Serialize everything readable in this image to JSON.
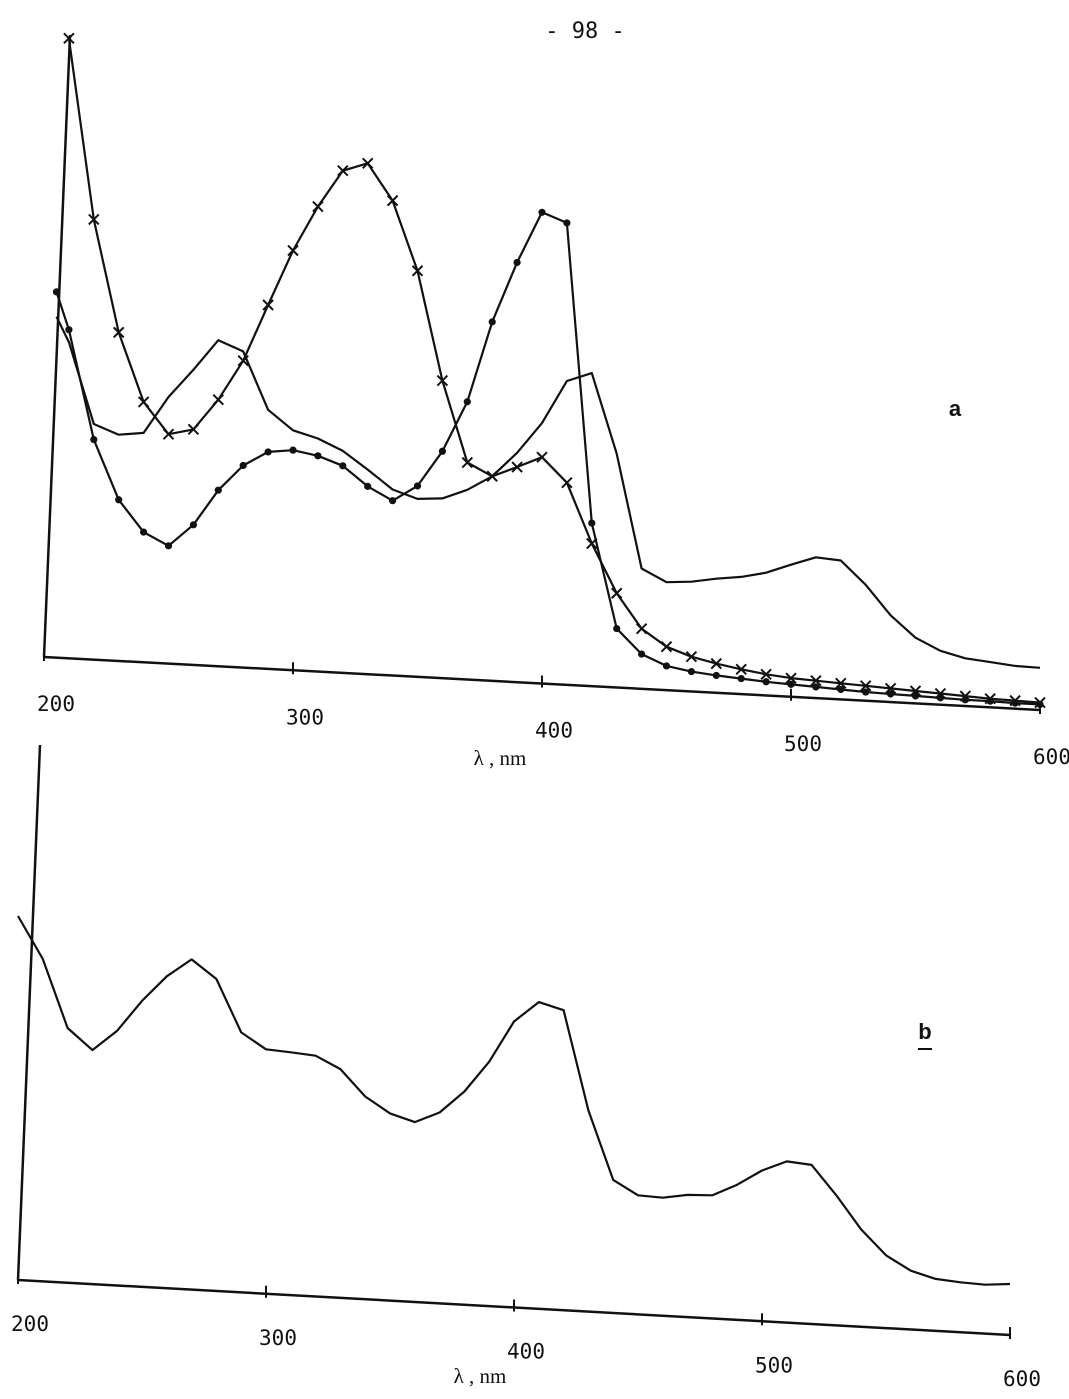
{
  "header": {
    "page_number": "- 98 -"
  },
  "chart_data": [
    {
      "type": "line",
      "annotation": "a",
      "x_label": "λ , nm",
      "xlim": [
        200,
        600
      ],
      "xticks": [
        200,
        300,
        400,
        500,
        600
      ],
      "ylim": [
        0,
        1.05
      ],
      "x": [
        205,
        210,
        220,
        230,
        240,
        250,
        260,
        270,
        280,
        290,
        300,
        310,
        320,
        330,
        340,
        350,
        360,
        370,
        380,
        390,
        400,
        410,
        420,
        430,
        440,
        450,
        460,
        470,
        480,
        490,
        500,
        510,
        520,
        530,
        540,
        550,
        560,
        570,
        580,
        590,
        600
      ],
      "series": [
        {
          "color": "#111111",
          "marker": "none",
          "values": [
            0.55,
            0.51,
            0.38,
            0.365,
            0.37,
            0.43,
            0.476,
            0.526,
            0.51,
            0.418,
            0.387,
            0.376,
            0.358,
            0.33,
            0.3,
            0.287,
            0.29,
            0.306,
            0.33,
            0.37,
            0.42,
            0.49,
            0.505,
            0.377,
            0.194,
            0.174,
            0.177,
            0.184,
            0.189,
            0.198,
            0.213,
            0.227,
            0.224,
            0.187,
            0.14,
            0.106,
            0.087,
            0.077,
            0.073,
            0.069,
            0.068
          ]
        },
        {
          "color": "#111111",
          "marker": "x",
          "values": [
            null,
            1.0,
            0.71,
            0.53,
            0.42,
            0.37,
            0.38,
            0.43,
            0.495,
            0.587,
            0.677,
            0.75,
            0.81,
            0.824,
            0.766,
            0.655,
            0.48,
            0.35,
            0.33,
            0.347,
            0.365,
            0.326,
            0.23,
            0.152,
            0.097,
            0.07,
            0.056,
            0.047,
            0.04,
            0.034,
            0.03,
            0.028,
            0.026,
            0.024,
            0.022,
            0.02,
            0.018,
            0.016,
            0.014,
            0.013,
            0.012
          ]
        },
        {
          "color": "#111111",
          "marker": "dot",
          "values": [
            0.59,
            0.53,
            0.355,
            0.26,
            0.21,
            0.19,
            0.226,
            0.284,
            0.326,
            0.35,
            0.355,
            0.348,
            0.334,
            0.303,
            0.282,
            0.308,
            0.366,
            0.448,
            0.579,
            0.677,
            0.76,
            0.745,
            0.263,
            0.095,
            0.056,
            0.039,
            0.032,
            0.028,
            0.025,
            0.022,
            0.02,
            0.018,
            0.016,
            0.014,
            0.013,
            0.012,
            0.011,
            0.01,
            0.01,
            0.009,
            0.009
          ]
        }
      ]
    },
    {
      "type": "line",
      "annotation": "b",
      "x_label": "λ , nm",
      "xlim": [
        200,
        600
      ],
      "xticks": [
        200,
        300,
        400,
        500,
        600
      ],
      "ylim": [
        0,
        1.05
      ],
      "x": [
        200,
        210,
        220,
        230,
        240,
        250,
        260,
        270,
        280,
        290,
        300,
        310,
        320,
        330,
        340,
        350,
        360,
        370,
        380,
        390,
        400,
        410,
        420,
        430,
        440,
        450,
        460,
        470,
        480,
        490,
        500,
        510,
        520,
        530,
        540,
        550,
        560,
        570,
        580,
        590,
        600
      ],
      "series": [
        {
          "color": "#111111",
          "marker": "none",
          "values": [
            0.7,
            0.62,
            0.49,
            0.45,
            0.49,
            0.55,
            0.6,
            0.635,
            0.6,
            0.5,
            0.47,
            0.467,
            0.463,
            0.44,
            0.39,
            0.36,
            0.346,
            0.367,
            0.41,
            0.47,
            0.55,
            0.59,
            0.577,
            0.387,
            0.256,
            0.229,
            0.227,
            0.235,
            0.237,
            0.26,
            0.29,
            0.31,
            0.306,
            0.25,
            0.187,
            0.14,
            0.113,
            0.1,
            0.096,
            0.094,
            0.098
          ]
        }
      ]
    }
  ]
}
